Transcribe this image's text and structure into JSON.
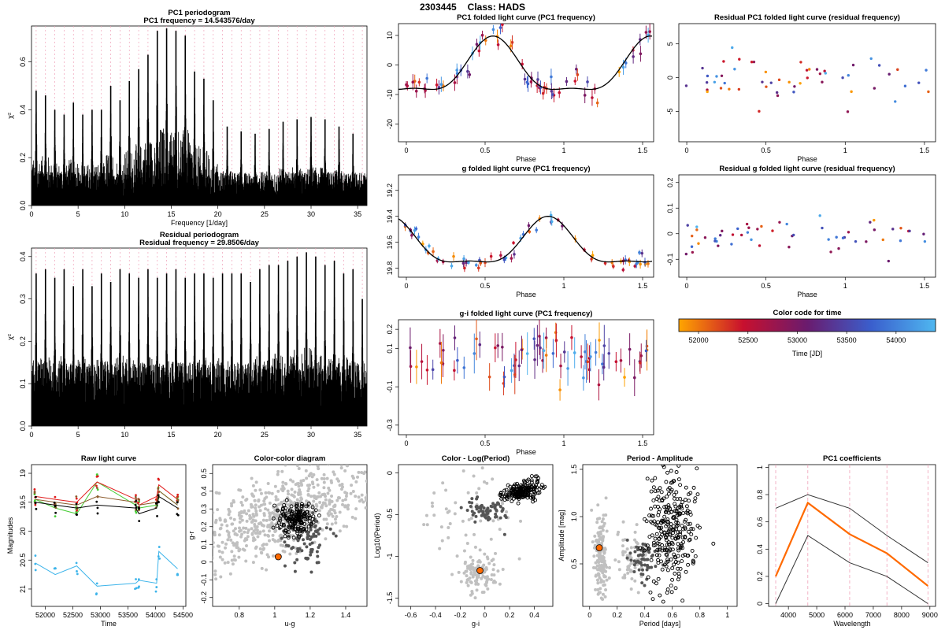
{
  "header": {
    "object_id": "2303445",
    "class_label": "Class: HADS"
  },
  "colorbar": {
    "title": "Color code for time",
    "xlabel": "Time [JD]",
    "ticks": [
      52000,
      52500,
      53000,
      53500,
      54000
    ],
    "range": [
      51800,
      54400
    ],
    "colors": [
      "#ffa500",
      "#c8102e",
      "#6a1b6e",
      "#3a5fcd",
      "#4fb7f0"
    ]
  },
  "chart_data": [
    {
      "id": "p1",
      "type": "periodogram",
      "title": "PC1 periodogram",
      "subtitle": "PC1 frequency = 14.543576/day",
      "xlabel": "Frequency [1/day]",
      "ylabel": "χ²",
      "xlim": [
        0,
        36
      ],
      "ylim": [
        0,
        0.75
      ],
      "xticks": [
        0,
        5,
        10,
        15,
        20,
        25,
        30,
        35
      ],
      "yticks": [
        0.0,
        0.2,
        0.4,
        0.6
      ],
      "alias_spacing": 1.0,
      "peaks": [
        {
          "f": 0.5,
          "y": 0.48
        },
        {
          "f": 1.5,
          "y": 0.46
        },
        {
          "f": 2.5,
          "y": 0.4
        },
        {
          "f": 3.5,
          "y": 0.38
        },
        {
          "f": 4.5,
          "y": 0.43
        },
        {
          "f": 5.5,
          "y": 0.38
        },
        {
          "f": 6.5,
          "y": 0.4
        },
        {
          "f": 7.5,
          "y": 0.4
        },
        {
          "f": 8.5,
          "y": 0.5
        },
        {
          "f": 9.5,
          "y": 0.44
        },
        {
          "f": 10.5,
          "y": 0.52
        },
        {
          "f": 11.5,
          "y": 0.57
        },
        {
          "f": 12.5,
          "y": 0.63
        },
        {
          "f": 13.5,
          "y": 0.73
        },
        {
          "f": 14.5,
          "y": 0.74
        },
        {
          "f": 15.5,
          "y": 0.73
        },
        {
          "f": 16.5,
          "y": 0.71
        },
        {
          "f": 17.5,
          "y": 0.56
        },
        {
          "f": 18.5,
          "y": 0.53
        },
        {
          "f": 19.5,
          "y": 0.44
        },
        {
          "f": 21.0,
          "y": 0.33
        },
        {
          "f": 22.5,
          "y": 0.31
        },
        {
          "f": 24.0,
          "y": 0.3
        },
        {
          "f": 25.5,
          "y": 0.32
        },
        {
          "f": 27.0,
          "y": 0.35
        },
        {
          "f": 28.5,
          "y": 0.36
        },
        {
          "f": 30.0,
          "y": 0.37
        },
        {
          "f": 31.5,
          "y": 0.36
        },
        {
          "f": 33.0,
          "y": 0.33
        },
        {
          "f": 34.5,
          "y": 0.3
        }
      ],
      "noise_floor": 0.14
    },
    {
      "id": "p2",
      "type": "periodogram",
      "title": "Residual periodogram",
      "subtitle": "Residual frequency = 29.8506/day",
      "xlabel": "",
      "ylabel": "χ²",
      "xlim": [
        0,
        36
      ],
      "ylim": [
        0,
        0.42
      ],
      "xticks": [
        0,
        5,
        10,
        15,
        20,
        25,
        30,
        35
      ],
      "yticks": [
        0.0,
        0.1,
        0.2,
        0.3,
        0.4
      ],
      "alias_spacing": 1.0,
      "peaks": [
        {
          "f": 0.5,
          "y": 0.36
        },
        {
          "f": 1.5,
          "y": 0.37
        },
        {
          "f": 2.5,
          "y": 0.35
        },
        {
          "f": 3.5,
          "y": 0.37
        },
        {
          "f": 4.5,
          "y": 0.33
        },
        {
          "f": 5.5,
          "y": 0.37
        },
        {
          "f": 6.5,
          "y": 0.33
        },
        {
          "f": 7.5,
          "y": 0.36
        },
        {
          "f": 8.5,
          "y": 0.34
        },
        {
          "f": 9.5,
          "y": 0.37
        },
        {
          "f": 10.5,
          "y": 0.36
        },
        {
          "f": 11.5,
          "y": 0.35
        },
        {
          "f": 12.5,
          "y": 0.37
        },
        {
          "f": 13.5,
          "y": 0.35
        },
        {
          "f": 14.5,
          "y": 0.36
        },
        {
          "f": 15.5,
          "y": 0.37
        },
        {
          "f": 16.5,
          "y": 0.35
        },
        {
          "f": 17.5,
          "y": 0.36
        },
        {
          "f": 18.5,
          "y": 0.36
        },
        {
          "f": 19.5,
          "y": 0.35
        },
        {
          "f": 20.5,
          "y": 0.36
        },
        {
          "f": 21.5,
          "y": 0.36
        },
        {
          "f": 22.5,
          "y": 0.36
        },
        {
          "f": 23.5,
          "y": 0.34
        },
        {
          "f": 24.5,
          "y": 0.37
        },
        {
          "f": 25.5,
          "y": 0.38
        },
        {
          "f": 26.5,
          "y": 0.38
        },
        {
          "f": 27.5,
          "y": 0.39
        },
        {
          "f": 28.5,
          "y": 0.4
        },
        {
          "f": 29.5,
          "y": 0.41
        },
        {
          "f": 30.5,
          "y": 0.4
        },
        {
          "f": 31.5,
          "y": 0.38
        },
        {
          "f": 32.5,
          "y": 0.39
        },
        {
          "f": 33.5,
          "y": 0.36
        },
        {
          "f": 34.5,
          "y": 0.37
        },
        {
          "f": 35.5,
          "y": 0.3
        }
      ],
      "noise_floor": 0.15
    },
    {
      "id": "f1",
      "type": "scatter-errorbar",
      "title": "PC1 folded light curve (PC1 frequency)",
      "xlabel": "Phase",
      "ylabel": "",
      "xlim": [
        -0.05,
        1.57
      ],
      "ylim": [
        -26,
        14
      ],
      "xticks": [
        0.0,
        0.5,
        1.0,
        1.5
      ],
      "yticks": [
        -20,
        -10,
        0,
        10
      ],
      "model": {
        "mean": -2,
        "amp": 11.8,
        "phase0": 0.55,
        "shape": "hads"
      },
      "noise": 2.5,
      "err": 2.0,
      "n": 70
    },
    {
      "id": "f2",
      "type": "scatter-errorbar",
      "title": "g folded light curve (PC1 frequency)",
      "xlabel": "Phase",
      "ylabel": "",
      "xlim": [
        -0.05,
        1.57
      ],
      "ylim": [
        19.87,
        19.08
      ],
      "inverted": true,
      "xticks": [
        0.0,
        0.5,
        1.0,
        1.5
      ],
      "yticks": [
        19.2,
        19.4,
        19.6,
        19.8
      ],
      "model": {
        "mean": 19.63,
        "amp": -0.23,
        "phase0": 0.9,
        "shape": "hads"
      },
      "noise": 0.03,
      "err": 0.025,
      "n": 70
    },
    {
      "id": "f3",
      "type": "scatter-errorbar",
      "title": "g-i folded light curve (PC1 frequency)",
      "xlabel": "Phase",
      "ylabel": "",
      "xlim": [
        -0.05,
        1.57
      ],
      "ylim": [
        -0.35,
        0.25
      ],
      "xticks": [
        0.0,
        0.5,
        1.0,
        1.5
      ],
      "yticks": [
        -0.3,
        -0.1,
        0.1,
        0.2
      ],
      "model": {
        "mean": 0.03,
        "amp": -0.1,
        "phase0": 0.8,
        "shape": "dip"
      },
      "noise": 0.06,
      "err": 0.08,
      "n": 75,
      "nomodel": true
    },
    {
      "id": "r1",
      "type": "scatter",
      "title": "Residual PC1 folded light curve (residual frequency)",
      "xlabel": "Phase",
      "ylabel": "",
      "xlim": [
        -0.05,
        1.57
      ],
      "ylim": [
        -9.5,
        8
      ],
      "xticks": [
        0.0,
        0.5,
        1.0,
        1.5
      ],
      "yticks": [
        -5,
        0,
        5
      ],
      "noise": 3.0,
      "n": 55
    },
    {
      "id": "r2",
      "type": "scatter",
      "title": "Residual g folded light curve (residual frequency)",
      "xlabel": "Phase",
      "ylabel": "",
      "xlim": [
        -0.05,
        1.57
      ],
      "ylim": [
        -0.17,
        0.23
      ],
      "xticks": [
        0.0,
        0.5,
        1.0,
        1.5
      ],
      "yticks": [
        -0.1,
        0.0,
        0.1,
        0.2
      ],
      "noise": 0.06,
      "n": 55
    },
    {
      "id": "raw",
      "type": "line",
      "title": "Raw light curve",
      "xlabel": "Time",
      "ylabel": "Magnitudes",
      "xlim": [
        51750,
        54550
      ],
      "ylim": [
        21.3,
        18.85
      ],
      "inverted": true,
      "xticks": [
        52000,
        52500,
        53000,
        53500,
        54000,
        54500
      ],
      "yticks": [
        19.0,
        19.5,
        20.0,
        20.5,
        21.0
      ],
      "series": [
        {
          "name": "u",
          "color": "#3db4ea",
          "y": [
            20.55,
            20.75,
            20.6,
            20.95,
            20.9,
            20.85,
            20.9,
            20.35,
            20.65
          ]
        },
        {
          "name": "g",
          "color": "#44cc33",
          "y": [
            19.45,
            19.6,
            19.7,
            19.15,
            19.55,
            19.6,
            19.55,
            19.3,
            19.55
          ]
        },
        {
          "name": "r",
          "color": "#e01b1b",
          "y": [
            19.4,
            19.45,
            19.5,
            19.15,
            19.45,
            19.55,
            19.4,
            19.2,
            19.45
          ]
        },
        {
          "name": "i",
          "color": "#8b5a2b",
          "y": [
            19.45,
            19.5,
            19.55,
            19.4,
            19.5,
            19.55,
            19.5,
            19.3,
            19.55
          ]
        },
        {
          "name": "z",
          "color": "#000000",
          "y": [
            19.5,
            19.55,
            19.6,
            19.55,
            19.6,
            19.7,
            19.6,
            19.4,
            19.6
          ]
        }
      ],
      "t": [
        51820,
        52180,
        52570,
        52940,
        53640,
        53700,
        54020,
        54060,
        54400
      ]
    },
    {
      "id": "cc",
      "type": "scatter-cloud",
      "title": "Color-color diagram",
      "xlabel": "u-g",
      "ylabel": "g-r",
      "xlim": [
        0.65,
        1.52
      ],
      "ylim": [
        -0.25,
        0.55
      ],
      "xticks": [
        0.8,
        1.0,
        1.2,
        1.4
      ],
      "yticks": [
        -0.2,
        -0.1,
        0.0,
        0.1,
        0.2,
        0.3,
        0.4,
        0.5
      ],
      "highlight": {
        "x": 1.02,
        "y": 0.03
      }
    },
    {
      "id": "clp",
      "type": "scatter-cloud",
      "title": "Color - Log(Period)",
      "xlabel": "g-i",
      "ylabel": "Log10(Period)",
      "xlim": [
        -0.7,
        0.55
      ],
      "ylim": [
        -1.6,
        0.1
      ],
      "xticks": [
        -0.6,
        -0.4,
        -0.2,
        0.0,
        0.2,
        0.4
      ],
      "yticks": [
        -1.5,
        -1.0,
        -0.5,
        0.0
      ],
      "highlight": {
        "x": -0.04,
        "y": -1.17
      }
    },
    {
      "id": "pa",
      "type": "scatter-cloud",
      "title": "Period - Amplitude",
      "xlabel": "Period [days]",
      "ylabel": "Amplitude [mag]",
      "xlim": [
        -0.05,
        1.07
      ],
      "ylim": [
        0.05,
        1.55
      ],
      "xticks": [
        0.0,
        0.2,
        0.4,
        0.6,
        0.8,
        1.0
      ],
      "yticks": [
        0.5,
        1.0,
        1.5
      ],
      "highlight": {
        "x": 0.07,
        "y": 0.67
      }
    },
    {
      "id": "coef",
      "type": "line",
      "title": "PC1 coefficients",
      "xlabel": "Wavelength",
      "ylabel": "",
      "xlim": [
        3300,
        9200
      ],
      "ylim": [
        -0.02,
        1.02
      ],
      "xticks": [
        4000,
        5000,
        6000,
        7000,
        8000,
        9000
      ],
      "yticks": [
        0.0,
        0.2,
        0.4,
        0.6,
        0.8,
        1.0
      ],
      "x": [
        3551,
        4686,
        6165,
        7481,
        8931
      ],
      "series": [
        {
          "name": "upper",
          "color": "#333333",
          "values": [
            0.7,
            0.8,
            0.7,
            0.5,
            0.3
          ]
        },
        {
          "name": "pc1",
          "color": "#ff6a00",
          "values": [
            0.2,
            0.74,
            0.51,
            0.37,
            0.13
          ]
        },
        {
          "name": "lower",
          "color": "#333333",
          "values": [
            0.0,
            0.5,
            0.3,
            0.2,
            0.0
          ]
        }
      ],
      "vlines": [
        3551,
        4686,
        6165,
        7481,
        8931
      ]
    }
  ]
}
